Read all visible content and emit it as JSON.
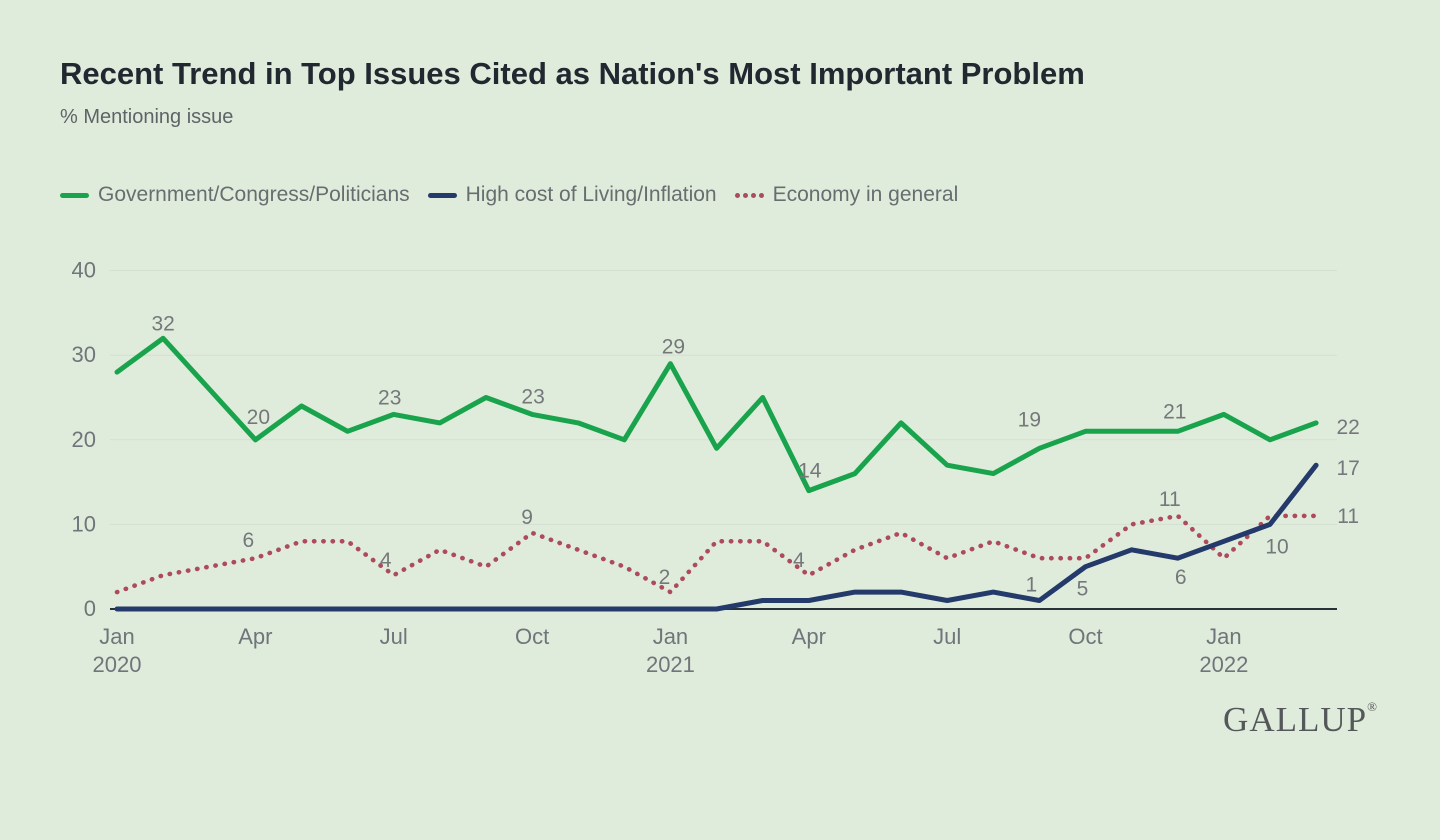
{
  "header": {
    "title": "Recent Trend in Top Issues Cited as Nation's Most Important Problem",
    "subtitle": "% Mentioning issue"
  },
  "palette": {
    "background": "#e0ecdb",
    "gridline": "#d3ded1",
    "axis": "#29323a",
    "tick_text": "#6f757a",
    "data_label_text": "#74787b"
  },
  "footer": {
    "logo": "GALLUP",
    "registered_mark": "®"
  },
  "chart_data": {
    "type": "line",
    "title": "Recent Trend in Top Issues Cited as Nation's Most Important Problem",
    "subtitle": "% Mentioning issue",
    "x_unit": "month",
    "x_range": [
      "Jan 2020",
      "Mar 2022"
    ],
    "ylim": [
      0,
      40
    ],
    "y_ticks": [
      0,
      10,
      20,
      30,
      40
    ],
    "grid": "horizontal",
    "legend_position": "top-left",
    "x_ticks": [
      {
        "i": 0,
        "label": "Jan",
        "year": "2020"
      },
      {
        "i": 3,
        "label": "Apr"
      },
      {
        "i": 6,
        "label": "Jul"
      },
      {
        "i": 9,
        "label": "Oct"
      },
      {
        "i": 12,
        "label": "Jan",
        "year": "2021"
      },
      {
        "i": 15,
        "label": "Apr"
      },
      {
        "i": 18,
        "label": "Jul"
      },
      {
        "i": 21,
        "label": "Oct"
      },
      {
        "i": 24,
        "label": "Jan",
        "year": "2022"
      }
    ],
    "months": [
      "Jan 2020",
      "Feb 2020",
      "Mar 2020",
      "Apr 2020",
      "May 2020",
      "Jun 2020",
      "Jul 2020",
      "Aug 2020",
      "Sep 2020",
      "Oct 2020",
      "Nov 2020",
      "Dec 2020",
      "Jan 2021",
      "Feb 2021",
      "Mar 2021",
      "Apr 2021",
      "May 2021",
      "Jun 2021",
      "Jul 2021",
      "Aug 2021",
      "Sep 2021",
      "Oct 2021",
      "Nov 2021",
      "Dec 2021",
      "Jan 2022",
      "Feb 2022",
      "Mar 2022"
    ],
    "series": [
      {
        "id": "government-congress-politicians",
        "name": "Government/Congress/Politicians",
        "color": "#19a34c",
        "dash": "solid",
        "draw_order": 2,
        "values": [
          28,
          32,
          26,
          20,
          24,
          21,
          23,
          22,
          25,
          23,
          22,
          20,
          29,
          19,
          25,
          14,
          16,
          22,
          17,
          16,
          19,
          21,
          21,
          21,
          23,
          20,
          22
        ],
        "point_labels": [
          {
            "i": 1,
            "dx": 0,
            "dy": -8
          },
          {
            "i": 3,
            "dx": 3,
            "dy": -16
          },
          {
            "i": 6,
            "dx": -4,
            "dy": -10
          },
          {
            "i": 9,
            "dx": 1,
            "dy": -11
          },
          {
            "i": 12,
            "dx": 3,
            "dy": -10
          },
          {
            "i": 15,
            "dx": 1,
            "dy": -13
          },
          {
            "i": 20,
            "dx": -10,
            "dy": -22
          },
          {
            "i": 23,
            "dx": -3,
            "dy": -13
          },
          {
            "i": 26,
            "dx": 32,
            "dy": 11
          }
        ]
      },
      {
        "id": "high-cost-of-living-inflation",
        "name": "High cost of Living/Inflation",
        "color": "#233a6b",
        "dash": "solid",
        "draw_order": 3,
        "values": [
          0,
          0,
          0,
          0,
          0,
          0,
          0,
          0,
          0,
          0,
          0,
          0,
          0,
          0,
          1,
          1,
          2,
          2,
          1,
          2,
          1,
          5,
          7,
          6,
          8,
          10,
          17
        ],
        "point_labels": [
          {
            "i": 20,
            "dx": -8,
            "dy": -9
          },
          {
            "i": 21,
            "dx": -3,
            "dy": 29
          },
          {
            "i": 23,
            "dx": 3,
            "dy": 26
          },
          {
            "i": 25,
            "dx": 7,
            "dy": 29
          },
          {
            "i": 26,
            "dx": 32,
            "dy": 10
          }
        ]
      },
      {
        "id": "economy-in-general",
        "name": "Economy in general",
        "color": "#ad4a5e",
        "dash": "dotted",
        "draw_order": 1,
        "values": [
          2,
          4,
          5,
          6,
          8,
          8,
          4,
          7,
          5,
          9,
          7,
          5,
          2,
          8,
          8,
          4,
          7,
          9,
          6,
          8,
          6,
          6,
          10,
          11,
          6,
          11,
          11
        ],
        "point_labels": [
          {
            "i": 3,
            "dx": -7,
            "dy": -11
          },
          {
            "i": 6,
            "dx": -8,
            "dy": -8
          },
          {
            "i": 9,
            "dx": -5,
            "dy": -9
          },
          {
            "i": 12,
            "dx": -6,
            "dy": -8
          },
          {
            "i": 15,
            "dx": -10,
            "dy": -8
          },
          {
            "i": 23,
            "dx": -8,
            "dy": -10
          },
          {
            "i": 26,
            "dx": 32,
            "dy": 7
          }
        ]
      }
    ]
  }
}
